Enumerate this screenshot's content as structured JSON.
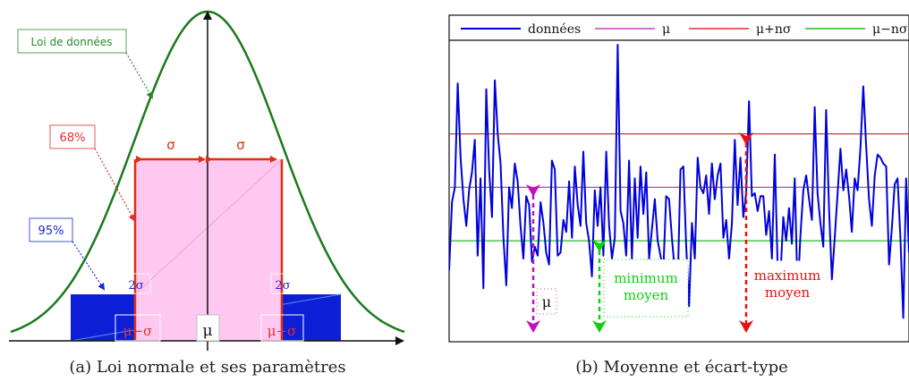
{
  "figure_a": {
    "caption": "(a) Loi normale et ses paramètres",
    "labels": {
      "law": "Loi de données",
      "pct68": "68%",
      "pct95": "95%",
      "sigma_left": "σ",
      "sigma_right": "σ",
      "two_sigma_left": "2σ",
      "two_sigma_right": "2σ",
      "mu_minus_sigma": "μ−σ",
      "mu": "μ",
      "mu_plus_sigma": "μ+σ"
    },
    "colors": {
      "curve": "#1a7a1a",
      "band68": "#ffc8f0",
      "band95": "#0d1fd6",
      "sigma": "#e03010",
      "law_box": "#2a8a2a",
      "pct68": "#e03030",
      "pct95": "#1a2ad0"
    }
  },
  "figure_b": {
    "caption": "(b) Moyenne et écart-type",
    "legend": [
      {
        "name": "données",
        "color": "#0000dd"
      },
      {
        "name": "μ",
        "color": "#c040c0"
      },
      {
        "name": "μ+nσ",
        "color": "#e03030"
      },
      {
        "name": "μ−nσ",
        "color": "#20c020"
      }
    ],
    "annotations": {
      "mu": "μ",
      "min_line1": "minimum",
      "min_line2": "moyen",
      "max_line1": "maximum",
      "max_line2": "moyen"
    },
    "chart_data": {
      "type": "line",
      "series": [
        {
          "name": "données",
          "values": [
            0.24,
            0.47,
            0.52,
            0.87,
            0.62,
            0.48,
            0.39,
            0.51,
            0.57,
            0.68,
            0.29,
            0.55,
            0.18,
            0.85,
            0.58,
            0.42,
            0.88,
            0.7,
            0.6,
            0.35,
            0.19,
            0.52,
            0.45,
            0.6,
            0.54,
            0.39,
            0.28,
            0.49,
            0.46,
            0.27,
            0.32,
            0.29,
            0.47,
            0.4,
            0.3,
            0.26,
            0.61,
            0.58,
            0.29,
            0.3,
            0.41,
            0.37,
            0.54,
            0.35,
            0.59,
            0.46,
            0.39,
            0.64,
            0.4,
            0.34,
            0.22,
            0.51,
            0.39,
            0.52,
            0.29,
            0.64,
            0.39,
            0.28,
            0.35,
            1.0,
            0.44,
            0.4,
            0.29,
            0.61,
            0.28,
            0.55,
            0.35,
            0.59,
            0.43,
            0.57,
            0.28,
            0.38,
            0.48,
            0.34,
            0.29,
            0.24,
            0.49,
            0.48,
            0.35,
            0.24,
            0.18,
            0.58,
            0.59,
            0.32,
            0.12,
            0.4,
            0.28,
            0.62,
            0.52,
            0.5,
            0.56,
            0.43,
            0.6,
            0.48,
            0.56,
            0.6,
            0.35,
            0.41,
            0.28,
            0.4,
            0.68,
            0.46,
            0.62,
            0.42,
            0.5,
            0.81,
            0.49,
            0.5,
            0.44,
            0.49,
            0.49,
            0.36,
            0.44,
            0.28,
            0.63,
            0.26,
            0.22,
            0.42,
            0.34,
            0.45,
            0.33,
            0.55,
            0.16,
            0.36,
            0.51,
            0.56,
            0.48,
            0.41,
            0.79,
            0.5,
            0.4,
            0.32,
            0.78,
            0.45,
            0.21,
            0.35,
            0.5,
            0.65,
            0.51,
            0.58,
            0.49,
            0.37,
            0.55,
            0.51,
            0.65,
            0.86,
            0.66,
            0.48,
            0.39,
            0.56,
            0.63,
            0.62,
            0.6,
            0.59,
            0.26,
            0.38,
            0.53,
            0.55,
            0.35,
            0.08,
            0.55,
            0.3
          ]
        }
      ],
      "hlines": {
        "mu": 0.52,
        "mu_plus_n_sigma": 0.7,
        "mu_minus_n_sigma": 0.34
      },
      "ylim": [
        0,
        1
      ],
      "legend_position": "top"
    }
  }
}
